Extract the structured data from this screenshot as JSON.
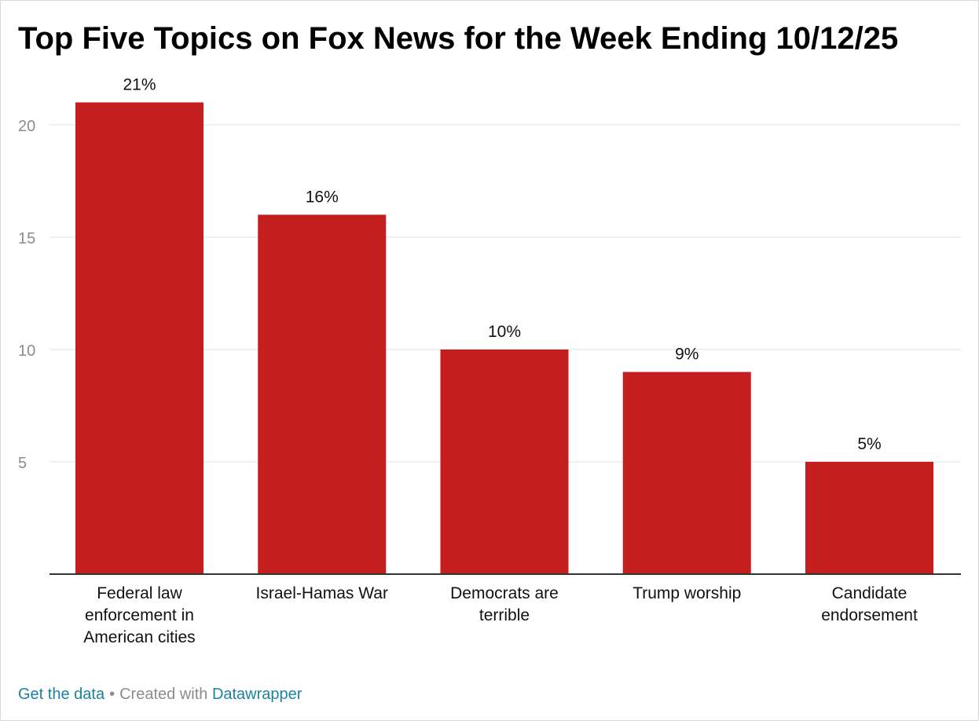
{
  "chart_data": {
    "type": "bar",
    "title": "Top Five Topics on Fox News for the Week Ending 10/12/25",
    "categories": [
      [
        "Federal law",
        "enforcement in",
        "American cities"
      ],
      [
        "Israel-Hamas War"
      ],
      [
        "Democrats are",
        "terrible"
      ],
      [
        "Trump worship"
      ],
      [
        "Candidate",
        "endorsement"
      ]
    ],
    "values": [
      21,
      16,
      10,
      9,
      5
    ],
    "value_labels": [
      "21%",
      "16%",
      "10%",
      "9%",
      "5%"
    ],
    "yticks": [
      5,
      10,
      15,
      20
    ],
    "ytick_labels": [
      "5",
      "10",
      "15",
      "20"
    ],
    "ylim": [
      0,
      22
    ],
    "xlabel": "",
    "ylabel": "",
    "grid": true,
    "bar_color": "#c41e1e"
  },
  "footer": {
    "get_data": "Get the data",
    "separator": "•",
    "created_with": "Created with",
    "tool": "Datawrapper"
  },
  "colors": {
    "link": "#1d81a2",
    "muted": "#8c8c8c",
    "grid": "#e6e6e6",
    "axis": "#333333"
  }
}
